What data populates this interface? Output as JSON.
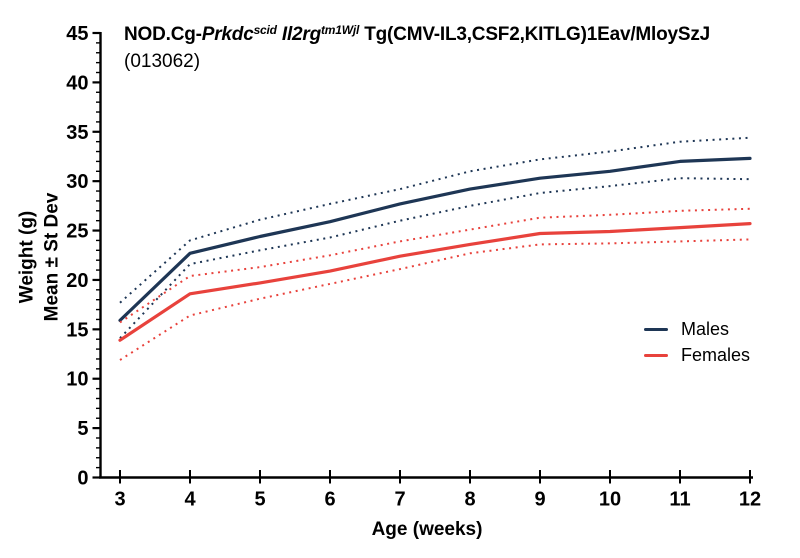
{
  "chart_data": {
    "type": "line",
    "title": "NOD.Cg-Prkdcscid Il2rgtm1Wjl Tg(CMV-IL3,CSF2,KITLG)1Eav/MloySzJ",
    "title_segments": [
      {
        "text": "NOD.Cg-",
        "italic": false,
        "sup": false
      },
      {
        "text": "Prkdc",
        "italic": true,
        "sup": false
      },
      {
        "text": "scid",
        "italic": true,
        "sup": true
      },
      {
        "text": " ",
        "italic": false,
        "sup": false
      },
      {
        "text": "Il2rg",
        "italic": true,
        "sup": false
      },
      {
        "text": "tm1Wjl",
        "italic": true,
        "sup": true
      },
      {
        "text": " Tg(CMV-IL3,CSF2,KITLG)1Eav/MloySzJ",
        "italic": false,
        "sup": false
      }
    ],
    "subtitle": "(013062)",
    "xlabel": "Age (weeks)",
    "ylabel_line1": "Weight (g)",
    "ylabel_line2": "Mean ± St Dev",
    "x": [
      3,
      4,
      5,
      6,
      7,
      8,
      9,
      10,
      11,
      12
    ],
    "xlim": [
      3,
      12
    ],
    "ylim": [
      0,
      45
    ],
    "y_major_step": 5,
    "y_minor_step": 1,
    "x_tick_labels": [
      "3",
      "4",
      "5",
      "6",
      "7",
      "8",
      "9",
      "10",
      "11",
      "12"
    ],
    "y_tick_labels": [
      "0",
      "5",
      "10",
      "15",
      "20",
      "25",
      "30",
      "35",
      "40",
      "45"
    ],
    "grid": false,
    "axis_color": "#000000",
    "series": [
      {
        "name": "Males mean",
        "color": "#1e3655",
        "line": "solid",
        "values": [
          15.9,
          22.7,
          24.4,
          25.9,
          27.7,
          29.2,
          30.3,
          31.0,
          32.0,
          32.3
        ]
      },
      {
        "name": "Males mean plus SD",
        "color": "#1e3655",
        "line": "dotted",
        "values": [
          17.7,
          24.0,
          26.1,
          27.7,
          29.2,
          31.0,
          32.2,
          33.0,
          34.0,
          34.4
        ]
      },
      {
        "name": "Males mean minus SD",
        "color": "#1e3655",
        "line": "dotted",
        "values": [
          14.1,
          21.6,
          23.0,
          24.3,
          26.0,
          27.5,
          28.8,
          29.5,
          30.3,
          30.2
        ]
      },
      {
        "name": "Females mean",
        "color": "#e8423c",
        "line": "solid",
        "values": [
          13.9,
          18.6,
          19.7,
          20.9,
          22.4,
          23.6,
          24.7,
          24.9,
          25.3,
          25.7
        ]
      },
      {
        "name": "Females mean plus SD",
        "color": "#e8423c",
        "line": "dotted",
        "values": [
          15.7,
          20.4,
          21.3,
          22.5,
          23.9,
          25.1,
          26.3,
          26.6,
          27.0,
          27.2
        ]
      },
      {
        "name": "Females mean minus SD",
        "color": "#e8423c",
        "line": "dotted",
        "values": [
          11.9,
          16.4,
          18.1,
          19.6,
          21.1,
          22.7,
          23.6,
          23.7,
          23.9,
          24.1
        ]
      }
    ],
    "legend": [
      {
        "label": "Males",
        "color": "#1e3655"
      },
      {
        "label": "Females",
        "color": "#e8423c"
      }
    ],
    "legend_position": "right-middle"
  }
}
